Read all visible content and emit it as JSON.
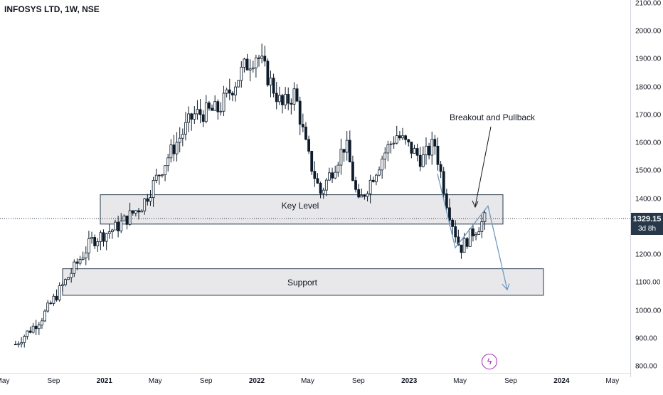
{
  "header": {
    "title": "INFOSYS LTD, 1W, NSE"
  },
  "price_axis": {
    "labels": [
      "2100.00",
      "2000.00",
      "1900.00",
      "1800.00",
      "1700.00",
      "1600.00",
      "1500.00",
      "1400.00",
      "1300.00",
      "1200.00",
      "1100.00",
      "1000.00",
      "900.00",
      "800.00"
    ],
    "current_price": "1329.15",
    "countdown": "3d 8h",
    "badge_color": "#26384a"
  },
  "time_axis": {
    "labels": [
      "May",
      "Sep",
      "2021",
      "May",
      "Sep",
      "2022",
      "May",
      "Sep",
      "2023",
      "May",
      "Sep",
      "2024",
      "May"
    ]
  },
  "annotations": {
    "key_level": "Key Level",
    "support": "Support",
    "breakout": "Breakout and Pullback"
  },
  "colors": {
    "candle": "#0d1b2a",
    "zone_fill": "#e6e6e9",
    "zone_border": "#26384a",
    "projection": "#6f9ac1",
    "logo": "#9c27b0"
  },
  "icons": {
    "tv_logo": "lightning-icon"
  },
  "chart_data": {
    "type": "candlestick",
    "symbol": "INFOSYS LTD",
    "interval": "1W",
    "exchange": "NSE",
    "y_range": [
      800,
      2100
    ],
    "current_price": 1329.15,
    "zones": [
      {
        "label": "Key Level",
        "low": 1310,
        "high": 1415
      },
      {
        "label": "Support",
        "low": 1055,
        "high": 1150
      }
    ],
    "key_points": [
      {
        "x": "2020-06",
        "close": 880
      },
      {
        "x": "2020-08",
        "close": 970
      },
      {
        "x": "2020-10",
        "close": 1110
      },
      {
        "x": "2020-12",
        "close": 1250
      },
      {
        "x": "2021-02",
        "close": 1300
      },
      {
        "x": "2021-04",
        "close": 1380
      },
      {
        "x": "2021-06",
        "close": 1550
      },
      {
        "x": "2021-08",
        "close": 1700
      },
      {
        "x": "2021-10",
        "close": 1720
      },
      {
        "x": "2021-12",
        "close": 1870
      },
      {
        "x": "2022-01",
        "close": 1920
      },
      {
        "x": "2022-03",
        "close": 1730
      },
      {
        "x": "2022-04",
        "close": 1780
      },
      {
        "x": "2022-05",
        "close": 1560
      },
      {
        "x": "2022-06",
        "close": 1420
      },
      {
        "x": "2022-08",
        "close": 1600
      },
      {
        "x": "2022-09",
        "close": 1380
      },
      {
        "x": "2022-11",
        "close": 1560
      },
      {
        "x": "2022-12",
        "close": 1630
      },
      {
        "x": "2023-02",
        "close": 1540
      },
      {
        "x": "2023-03",
        "close": 1600
      },
      {
        "x": "2023-04",
        "close": 1380
      },
      {
        "x": "2023-05",
        "close": 1220
      },
      {
        "x": "2023-06",
        "close": 1280
      },
      {
        "x": "2023-07",
        "close": 1329.15
      }
    ]
  }
}
